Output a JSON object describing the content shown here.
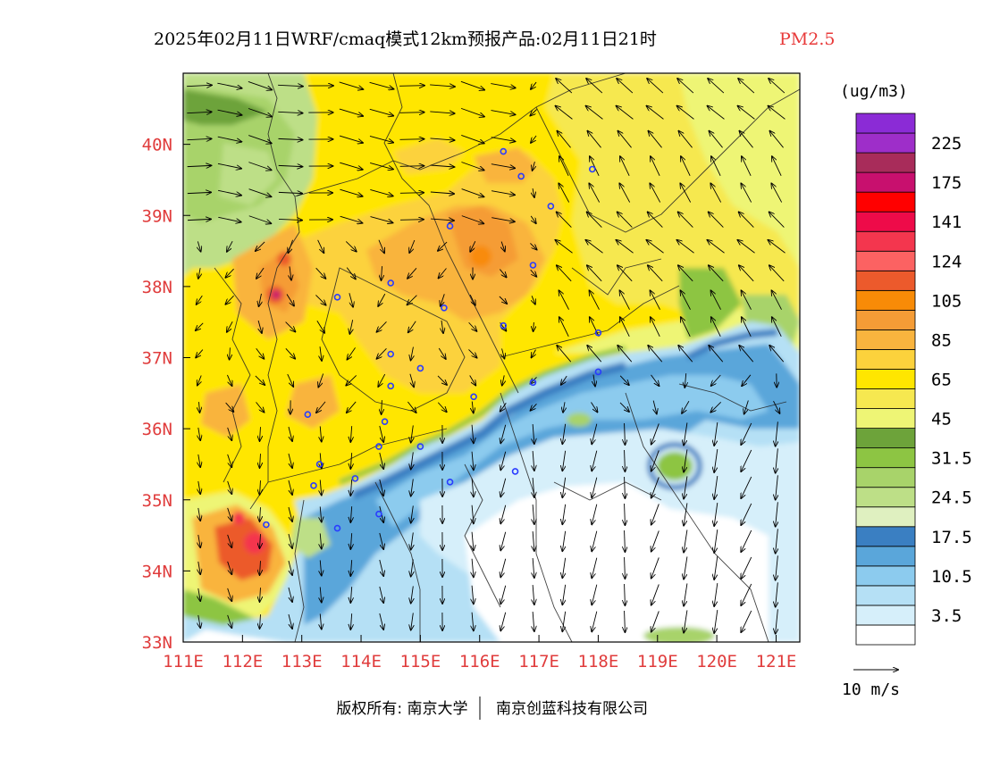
{
  "header": {
    "title": "2025年02月11日WRF/cmaq模式12km预报产品:02月11日21时",
    "species": "PM2.5",
    "species_color": "#e83a3a"
  },
  "map": {
    "lon_range": [
      111,
      121.4
    ],
    "lat_range": [
      33,
      41
    ],
    "lon_ticks": [
      "111E",
      "112E",
      "113E",
      "114E",
      "115E",
      "116E",
      "117E",
      "118E",
      "119E",
      "120E",
      "121E"
    ],
    "lat_ticks": [
      {
        "lat": 40,
        "label": "40N"
      },
      {
        "lat": 39,
        "label": "39N"
      },
      {
        "lat": 38,
        "label": "38N"
      },
      {
        "lat": 37,
        "label": "37N"
      },
      {
        "lat": 36,
        "label": "36N"
      },
      {
        "lat": 35,
        "label": "35N"
      },
      {
        "lat": 34,
        "label": "34N"
      },
      {
        "lat": 33,
        "label": "33N"
      }
    ],
    "tick_color": "#e03c3c",
    "city_marker_color": "#2a3cff",
    "cities": [
      [
        116.4,
        39.9
      ],
      [
        116.7,
        39.55
      ],
      [
        117.2,
        39.13
      ],
      [
        117.9,
        39.65
      ],
      [
        115.5,
        38.85
      ],
      [
        116.9,
        38.3
      ],
      [
        114.5,
        38.05
      ],
      [
        113.6,
        37.85
      ],
      [
        115.4,
        37.7
      ],
      [
        116.4,
        37.45
      ],
      [
        114.5,
        37.05
      ],
      [
        114.5,
        36.6
      ],
      [
        115.0,
        36.85
      ],
      [
        113.1,
        36.2
      ],
      [
        114.4,
        36.1
      ],
      [
        115.9,
        36.45
      ],
      [
        116.9,
        36.65
      ],
      [
        118.0,
        37.35
      ],
      [
        118.0,
        36.8
      ],
      [
        114.3,
        35.75
      ],
      [
        115.0,
        35.75
      ],
      [
        113.3,
        35.5
      ],
      [
        113.2,
        35.2
      ],
      [
        113.9,
        35.3
      ],
      [
        115.5,
        35.25
      ],
      [
        116.6,
        35.4
      ],
      [
        114.3,
        34.8
      ],
      [
        113.6,
        34.6
      ],
      [
        112.4,
        34.65
      ]
    ]
  },
  "legend": {
    "unit": "(ug/m3)",
    "bins": [
      {
        "color": "#ffffff",
        "label": ""
      },
      {
        "color": "#d6effa",
        "label": "3.5"
      },
      {
        "color": "#b5e0f5",
        "label": ""
      },
      {
        "color": "#8ccbee",
        "label": "10.5"
      },
      {
        "color": "#5aa6da",
        "label": ""
      },
      {
        "color": "#3a7fc2",
        "label": "17.5"
      },
      {
        "color": "#dff0c0",
        "label": ""
      },
      {
        "color": "#bddf87",
        "label": "24.5"
      },
      {
        "color": "#a8d36a",
        "label": ""
      },
      {
        "color": "#8dc543",
        "label": "31.5"
      },
      {
        "color": "#6da33a",
        "label": ""
      },
      {
        "color": "#eef575",
        "label": "45"
      },
      {
        "color": "#f6e850",
        "label": ""
      },
      {
        "color": "#ffe600",
        "label": "65"
      },
      {
        "color": "#fcd23c",
        "label": ""
      },
      {
        "color": "#f9b43e",
        "label": "85"
      },
      {
        "color": "#f59c36",
        "label": ""
      },
      {
        "color": "#f88b07",
        "label": "105"
      },
      {
        "color": "#ec5a2c",
        "label": ""
      },
      {
        "color": "#fc6262",
        "label": "124"
      },
      {
        "color": "#f4364e",
        "label": ""
      },
      {
        "color": "#ee0b49",
        "label": "141"
      },
      {
        "color": "#ff0000",
        "label": ""
      },
      {
        "color": "#c8106e",
        "label": "175"
      },
      {
        "color": "#a82c5a",
        "label": ""
      },
      {
        "color": "#9e2ec9",
        "label": "225"
      },
      {
        "color": "#8b2bd6",
        "label": ""
      }
    ]
  },
  "wind_scale": {
    "label": "10 m/s"
  },
  "footer": {
    "copyright": "版权所有: 南京大学",
    "company": "南京创蓝科技有限公司"
  }
}
